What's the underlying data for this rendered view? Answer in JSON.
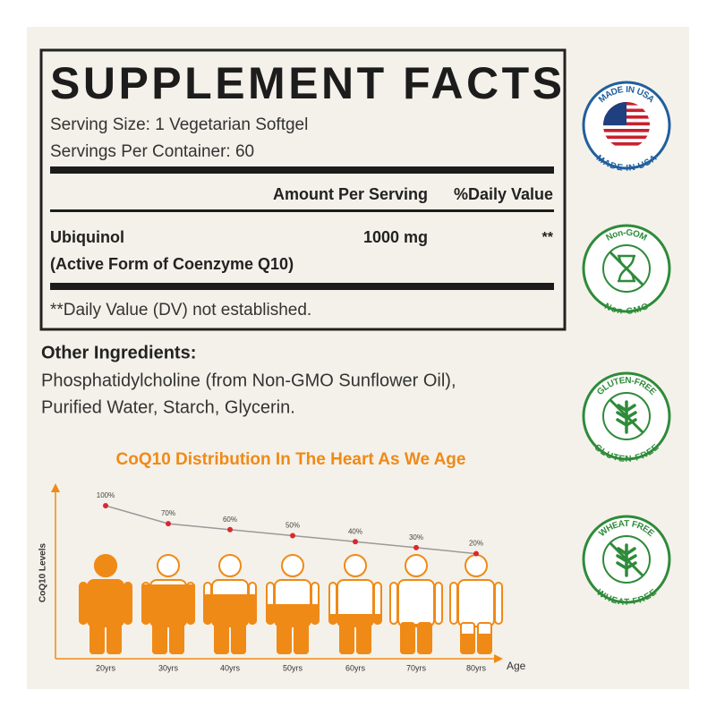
{
  "supplement_facts": {
    "title": "SUPPLEMENT FACTS",
    "serving_size": "Serving Size: 1 Vegetarian Softgel",
    "servings_per_container": "Servings Per Container: 60",
    "header_amount": "Amount Per Serving",
    "header_dv": "%Daily Value",
    "ingredient_name": "Ubiquinol",
    "ingredient_note": "(Active Form of Coenzyme Q10)",
    "ingredient_amount": "1000 mg",
    "ingredient_dv": "**",
    "footnote": "**Daily Value (DV) not established."
  },
  "other_ingredients": {
    "title": "Other Ingredients:",
    "lines": [
      "Phosphatidylcholine (from Non-GMO Sunflower Oil),",
      "Purified Water, Starch, Glycerin."
    ]
  },
  "badges": [
    {
      "top": "MADE IN USA",
      "bottom": "MADE IN USA"
    },
    {
      "top": "Non-GOM",
      "bottom": "Non-GMO"
    },
    {
      "top": "GLUTEN-FREE",
      "bottom": "GLUTEN-FREE"
    },
    {
      "top": "WHEAT FREE",
      "bottom": "WHEAT FREE"
    }
  ],
  "chart_data": {
    "type": "line",
    "title": "CoQ10 Distribution In The Heart As We Age",
    "y_label": "CoQ10 Levels",
    "x_label": "Age",
    "categories": [
      "20yrs",
      "30yrs",
      "40yrs",
      "50yrs",
      "60yrs",
      "70yrs",
      "80yrs"
    ],
    "values": [
      100,
      70,
      60,
      50,
      40,
      30,
      20
    ],
    "value_labels": [
      "100%",
      "70%",
      "60%",
      "50%",
      "40%",
      "30%",
      "20%"
    ],
    "color": "#d9282f",
    "fill_color": "#ef8a17"
  }
}
